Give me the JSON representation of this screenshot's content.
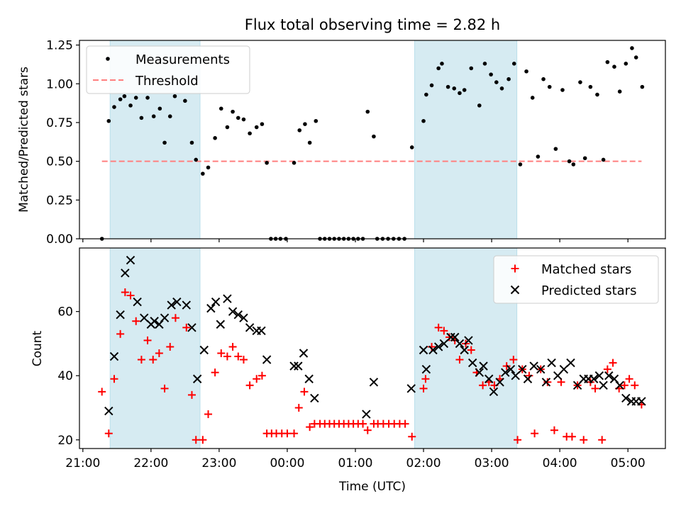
{
  "chart_data": {
    "type": "scatter",
    "title": "Flux total observing time = 2.82 h",
    "xlabel": "Time (UTC)",
    "x_unit": "hours UTC (values past 24 are after midnight)",
    "xlim": [
      20.95,
      29.55
    ],
    "x_ticks": [
      {
        "v": 21,
        "label": "21:00"
      },
      {
        "v": 22,
        "label": "22:00"
      },
      {
        "v": 23,
        "label": "23:00"
      },
      {
        "v": 24,
        "label": "00:00"
      },
      {
        "v": 25,
        "label": "01:00"
      },
      {
        "v": 26,
        "label": "02:00"
      },
      {
        "v": 27,
        "label": "03:00"
      },
      {
        "v": 28,
        "label": "04:00"
      },
      {
        "v": 29,
        "label": "05:00"
      }
    ],
    "shaded_intervals": [
      [
        21.4,
        22.72
      ],
      [
        25.87,
        27.37
      ]
    ],
    "shade_color": "#add8e6",
    "top_panel": {
      "ylabel": "Matched/Predicted stars",
      "ylim": [
        0,
        1.28
      ],
      "y_ticks": [
        {
          "v": 0.0,
          "label": "0.00"
        },
        {
          "v": 0.25,
          "label": "0.25"
        },
        {
          "v": 0.5,
          "label": "0.50"
        },
        {
          "v": 0.75,
          "label": "0.75"
        },
        {
          "v": 1.0,
          "label": "1.00"
        },
        {
          "v": 1.25,
          "label": "1.25"
        }
      ],
      "legend": [
        "Measurements",
        "Threshold"
      ],
      "threshold": {
        "name": "Threshold",
        "y": 0.5,
        "x_range": [
          21.28,
          29.2
        ],
        "color": "#ff7f7f"
      },
      "measurements": {
        "name": "Measurements",
        "color": "#000000",
        "points": [
          [
            21.28,
            0.0
          ],
          [
            21.38,
            0.76
          ],
          [
            21.46,
            0.85
          ],
          [
            21.55,
            0.9
          ],
          [
            21.61,
            0.92
          ],
          [
            21.7,
            0.86
          ],
          [
            21.78,
            0.91
          ],
          [
            21.86,
            0.78
          ],
          [
            21.95,
            0.91
          ],
          [
            22.04,
            0.79
          ],
          [
            22.13,
            0.84
          ],
          [
            22.2,
            0.62
          ],
          [
            22.28,
            0.79
          ],
          [
            22.35,
            0.92
          ],
          [
            22.5,
            0.89
          ],
          [
            22.6,
            0.62
          ],
          [
            22.66,
            0.51
          ],
          [
            22.76,
            0.42
          ],
          [
            22.84,
            0.46
          ],
          [
            22.94,
            0.65
          ],
          [
            23.03,
            0.84
          ],
          [
            23.12,
            0.72
          ],
          [
            23.2,
            0.82
          ],
          [
            23.28,
            0.78
          ],
          [
            23.36,
            0.77
          ],
          [
            23.45,
            0.68
          ],
          [
            23.55,
            0.72
          ],
          [
            23.63,
            0.74
          ],
          [
            23.7,
            0.49
          ],
          [
            23.76,
            0.0
          ],
          [
            23.83,
            0.0
          ],
          [
            23.9,
            0.0
          ],
          [
            23.98,
            0.0
          ],
          [
            24.1,
            0.49
          ],
          [
            24.18,
            0.7
          ],
          [
            24.26,
            0.74
          ],
          [
            24.33,
            0.62
          ],
          [
            24.42,
            0.76
          ],
          [
            24.48,
            0.0
          ],
          [
            24.55,
            0.0
          ],
          [
            24.62,
            0.0
          ],
          [
            24.69,
            0.0
          ],
          [
            24.76,
            0.0
          ],
          [
            24.83,
            0.0
          ],
          [
            24.9,
            0.0
          ],
          [
            24.97,
            0.0
          ],
          [
            25.04,
            0.0
          ],
          [
            25.11,
            0.0
          ],
          [
            25.18,
            0.82
          ],
          [
            25.27,
            0.66
          ],
          [
            25.32,
            0.0
          ],
          [
            25.4,
            0.0
          ],
          [
            25.48,
            0.0
          ],
          [
            25.56,
            0.0
          ],
          [
            25.64,
            0.0
          ],
          [
            25.72,
            0.0
          ],
          [
            25.83,
            0.59
          ],
          [
            26.0,
            0.76
          ],
          [
            26.04,
            0.93
          ],
          [
            26.12,
            0.99
          ],
          [
            26.22,
            1.1
          ],
          [
            26.27,
            1.13
          ],
          [
            26.36,
            0.98
          ],
          [
            26.45,
            0.97
          ],
          [
            26.53,
            0.94
          ],
          [
            26.6,
            0.96
          ],
          [
            26.7,
            1.1
          ],
          [
            26.82,
            0.86
          ],
          [
            26.9,
            1.13
          ],
          [
            26.99,
            1.06
          ],
          [
            27.07,
            1.01
          ],
          [
            27.15,
            0.97
          ],
          [
            27.25,
            1.03
          ],
          [
            27.33,
            1.13
          ],
          [
            27.42,
            0.48
          ],
          [
            27.51,
            1.08
          ],
          [
            27.6,
            0.91
          ],
          [
            27.68,
            0.53
          ],
          [
            27.76,
            1.03
          ],
          [
            27.85,
            0.98
          ],
          [
            27.94,
            0.58
          ],
          [
            28.04,
            0.96
          ],
          [
            28.14,
            0.5
          ],
          [
            28.2,
            0.48
          ],
          [
            28.3,
            1.01
          ],
          [
            28.37,
            0.52
          ],
          [
            28.45,
            0.98
          ],
          [
            28.55,
            0.93
          ],
          [
            28.64,
            0.51
          ],
          [
            28.7,
            1.14
          ],
          [
            28.8,
            1.11
          ],
          [
            28.88,
            0.95
          ],
          [
            28.97,
            1.13
          ],
          [
            29.06,
            1.23
          ],
          [
            29.12,
            1.17
          ],
          [
            29.21,
            0.98
          ]
        ]
      }
    },
    "bottom_panel": {
      "ylabel": "Count",
      "ylim": [
        17.3,
        79.8
      ],
      "y_ticks": [
        {
          "v": 20,
          "label": "20"
        },
        {
          "v": 40,
          "label": "40"
        },
        {
          "v": 60,
          "label": "60"
        }
      ],
      "legend": [
        "Matched stars",
        "Predicted stars"
      ],
      "series": [
        {
          "name": "Matched stars",
          "marker": "+",
          "color": "#ff0000",
          "points": [
            [
              21.28,
              35
            ],
            [
              21.38,
              22
            ],
            [
              21.46,
              39
            ],
            [
              21.55,
              53
            ],
            [
              21.62,
              66
            ],
            [
              21.7,
              65
            ],
            [
              21.78,
              57
            ],
            [
              21.86,
              45
            ],
            [
              21.95,
              51
            ],
            [
              22.03,
              45
            ],
            [
              22.12,
              47
            ],
            [
              22.2,
              36
            ],
            [
              22.28,
              49
            ],
            [
              22.36,
              58
            ],
            [
              22.52,
              55
            ],
            [
              22.6,
              34
            ],
            [
              22.66,
              20
            ],
            [
              22.76,
              20
            ],
            [
              22.84,
              28
            ],
            [
              22.94,
              41
            ],
            [
              23.03,
              47
            ],
            [
              23.12,
              46
            ],
            [
              23.2,
              49
            ],
            [
              23.28,
              46
            ],
            [
              23.36,
              45
            ],
            [
              23.45,
              37
            ],
            [
              23.55,
              39
            ],
            [
              23.63,
              40
            ],
            [
              23.7,
              22
            ],
            [
              23.77,
              22
            ],
            [
              23.84,
              22
            ],
            [
              23.92,
              22
            ],
            [
              24.0,
              22
            ],
            [
              24.1,
              22
            ],
            [
              24.17,
              30
            ],
            [
              24.25,
              35
            ],
            [
              24.33,
              24
            ],
            [
              24.4,
              25
            ],
            [
              24.48,
              25
            ],
            [
              24.55,
              25
            ],
            [
              24.62,
              25
            ],
            [
              24.69,
              25
            ],
            [
              24.76,
              25
            ],
            [
              24.83,
              25
            ],
            [
              24.9,
              25
            ],
            [
              24.97,
              25
            ],
            [
              25.04,
              25
            ],
            [
              25.11,
              25
            ],
            [
              25.18,
              23
            ],
            [
              25.27,
              25
            ],
            [
              25.33,
              25
            ],
            [
              25.41,
              25
            ],
            [
              25.49,
              25
            ],
            [
              25.57,
              25
            ],
            [
              25.65,
              25
            ],
            [
              25.73,
              25
            ],
            [
              25.83,
              21
            ],
            [
              26.0,
              36
            ],
            [
              26.03,
              39
            ],
            [
              26.12,
              49
            ],
            [
              26.22,
              55
            ],
            [
              26.3,
              54
            ],
            [
              26.38,
              52
            ],
            [
              26.46,
              51
            ],
            [
              26.53,
              45
            ],
            [
              26.62,
              50
            ],
            [
              26.7,
              48
            ],
            [
              26.78,
              41
            ],
            [
              26.87,
              37
            ],
            [
              26.96,
              38
            ],
            [
              27.04,
              37
            ],
            [
              27.12,
              39
            ],
            [
              27.22,
              43
            ],
            [
              27.32,
              45
            ],
            [
              27.38,
              20
            ],
            [
              27.45,
              42
            ],
            [
              27.55,
              40
            ],
            [
              27.63,
              22
            ],
            [
              27.72,
              42
            ],
            [
              27.82,
              38
            ],
            [
              27.92,
              23
            ],
            [
              28.02,
              38
            ],
            [
              28.1,
              21
            ],
            [
              28.18,
              21
            ],
            [
              28.26,
              37
            ],
            [
              28.35,
              20
            ],
            [
              28.45,
              38
            ],
            [
              28.52,
              36
            ],
            [
              28.62,
              20
            ],
            [
              28.7,
              42
            ],
            [
              28.78,
              44
            ],
            [
              28.87,
              36
            ],
            [
              28.95,
              37
            ],
            [
              29.02,
              39
            ],
            [
              29.1,
              37
            ],
            [
              29.2,
              31
            ]
          ]
        },
        {
          "name": "Predicted stars",
          "marker": "x",
          "color": "#000000",
          "points": [
            [
              21.38,
              29
            ],
            [
              21.46,
              46
            ],
            [
              21.55,
              59
            ],
            [
              21.62,
              72
            ],
            [
              21.7,
              76
            ],
            [
              21.8,
              63
            ],
            [
              21.9,
              58
            ],
            [
              22.0,
              56
            ],
            [
              22.05,
              57
            ],
            [
              22.12,
              56
            ],
            [
              22.2,
              58
            ],
            [
              22.3,
              62
            ],
            [
              22.38,
              63
            ],
            [
              22.52,
              62
            ],
            [
              22.6,
              55
            ],
            [
              22.68,
              39
            ],
            [
              22.78,
              48
            ],
            [
              22.88,
              61
            ],
            [
              22.95,
              63
            ],
            [
              23.02,
              56
            ],
            [
              23.12,
              64
            ],
            [
              23.2,
              60
            ],
            [
              23.28,
              59
            ],
            [
              23.36,
              58
            ],
            [
              23.45,
              55
            ],
            [
              23.55,
              54
            ],
            [
              23.62,
              54
            ],
            [
              23.7,
              45
            ],
            [
              24.1,
              43
            ],
            [
              24.16,
              43
            ],
            [
              24.24,
              47
            ],
            [
              24.32,
              39
            ],
            [
              24.4,
              33
            ],
            [
              25.16,
              28
            ],
            [
              25.27,
              38
            ],
            [
              25.82,
              36
            ],
            [
              26.0,
              48
            ],
            [
              26.04,
              42
            ],
            [
              26.14,
              48
            ],
            [
              26.22,
              49
            ],
            [
              26.3,
              50
            ],
            [
              26.4,
              52
            ],
            [
              26.46,
              52
            ],
            [
              26.53,
              50
            ],
            [
              26.6,
              48
            ],
            [
              26.66,
              51
            ],
            [
              26.72,
              44
            ],
            [
              26.82,
              41
            ],
            [
              26.88,
              43
            ],
            [
              26.96,
              39
            ],
            [
              27.03,
              35
            ],
            [
              27.12,
              38
            ],
            [
              27.2,
              41
            ],
            [
              27.28,
              42
            ],
            [
              27.35,
              40
            ],
            [
              27.45,
              42
            ],
            [
              27.53,
              39
            ],
            [
              27.62,
              43
            ],
            [
              27.72,
              42
            ],
            [
              27.8,
              38
            ],
            [
              27.88,
              44
            ],
            [
              27.97,
              40
            ],
            [
              28.06,
              42
            ],
            [
              28.16,
              44
            ],
            [
              28.26,
              37
            ],
            [
              28.35,
              39
            ],
            [
              28.42,
              39
            ],
            [
              28.5,
              39
            ],
            [
              28.58,
              40
            ],
            [
              28.64,
              37
            ],
            [
              28.72,
              40
            ],
            [
              28.8,
              39
            ],
            [
              28.88,
              37
            ],
            [
              28.97,
              33
            ],
            [
              29.05,
              32
            ],
            [
              29.12,
              32
            ],
            [
              29.2,
              32
            ]
          ]
        }
      ]
    }
  }
}
